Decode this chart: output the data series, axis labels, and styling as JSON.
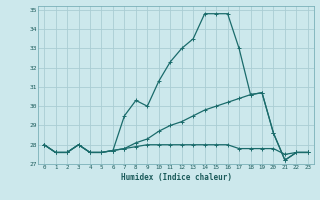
{
  "xlabel": "Humidex (Indice chaleur)",
  "ylabel": "",
  "background_color": "#cce8ec",
  "grid_color": "#aacdd4",
  "line_color": "#1a6b6b",
  "xlim": [
    -0.5,
    23.5
  ],
  "ylim": [
    27,
    35.2
  ],
  "yticks": [
    27,
    28,
    29,
    30,
    31,
    32,
    33,
    34,
    35
  ],
  "xticks": [
    0,
    1,
    2,
    3,
    4,
    5,
    6,
    7,
    8,
    9,
    10,
    11,
    12,
    13,
    14,
    15,
    16,
    17,
    18,
    19,
    20,
    21,
    22,
    23
  ],
  "series": [
    [
      28.0,
      27.6,
      27.6,
      28.0,
      27.6,
      27.6,
      27.7,
      29.5,
      30.3,
      30.0,
      31.3,
      32.3,
      33.0,
      33.5,
      34.8,
      34.8,
      34.8,
      33.0,
      30.6,
      30.7,
      28.6,
      27.2,
      27.6,
      27.6
    ],
    [
      28.0,
      27.6,
      27.6,
      28.0,
      27.6,
      27.6,
      27.7,
      27.8,
      28.1,
      28.3,
      28.7,
      29.0,
      29.2,
      29.5,
      29.8,
      30.0,
      30.2,
      30.4,
      30.6,
      30.7,
      28.6,
      27.2,
      27.6,
      27.6
    ],
    [
      28.0,
      27.6,
      27.6,
      28.0,
      27.6,
      27.6,
      27.7,
      27.8,
      27.9,
      28.0,
      28.0,
      28.0,
      28.0,
      28.0,
      28.0,
      28.0,
      28.0,
      27.8,
      27.8,
      27.8,
      27.8,
      27.5,
      27.6,
      27.6
    ]
  ]
}
